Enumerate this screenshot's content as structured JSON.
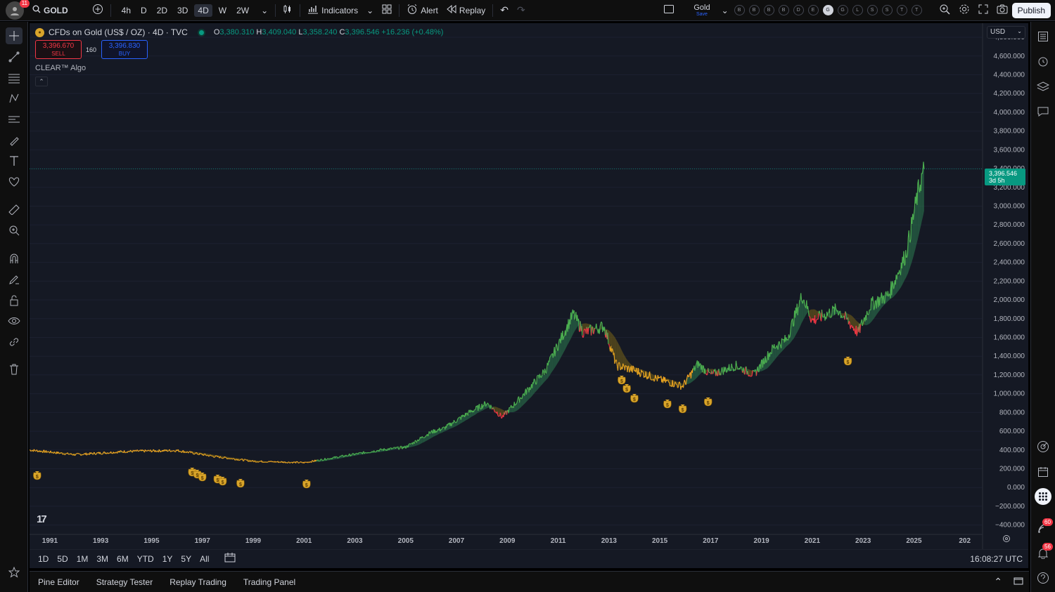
{
  "topbar": {
    "avatar_badge": "11",
    "symbol": "GOLD",
    "timeframes": [
      "4h",
      "D",
      "2D",
      "3D",
      "4D",
      "W",
      "2W"
    ],
    "active_timeframe": "4D",
    "indicators_label": "Indicators",
    "alert_label": "Alert",
    "replay_label": "Replay",
    "layout_name": "Gold",
    "layout_status": "Save",
    "watchlist_letters": [
      "B",
      "B",
      "B",
      "B",
      "D",
      "E",
      "G",
      "G",
      "L",
      "S",
      "S",
      "T",
      "T"
    ],
    "watchlist_active_index": 6,
    "publish_label": "Publish"
  },
  "legend": {
    "title": "CFDs on Gold (US$ / OZ) · 4D · TVC",
    "open_label": "O",
    "open": "3,380.310",
    "high_label": "H",
    "high": "3,409.040",
    "low_label": "L",
    "low": "3,358.240",
    "close_label": "C",
    "close": "3,396.546",
    "change": "+16.236 (+0.48%)"
  },
  "trade": {
    "sell_price": "3,396.670",
    "sell_label": "SELL",
    "spread": "160",
    "buy_price": "3,396.830",
    "buy_label": "BUY"
  },
  "indicator_name": "CLEAR™ Algo",
  "currency": "USD",
  "last_price": "3,396.546",
  "last_price_countdown": "3d 5h",
  "chart_data": {
    "type": "line",
    "x_tick_labels": [
      "1991",
      "1993",
      "1995",
      "1997",
      "1999",
      "2001",
      "2003",
      "2005",
      "2007",
      "2009",
      "2011",
      "2013",
      "2015",
      "2017",
      "2019",
      "2021",
      "2023",
      "2025",
      "202"
    ],
    "y_tick_labels": [
      "4,800.000",
      "4,600.000",
      "4,400.000",
      "4,200.000",
      "4,000.000",
      "3,800.000",
      "3,600.000",
      "3,400.000",
      "3,200.000",
      "3,000.000",
      "2,800.000",
      "2,600.000",
      "2,400.000",
      "2,200.000",
      "2,000.000",
      "1,800.000",
      "1,600.000",
      "1,400.000",
      "1,200.000",
      "1,000.000",
      "800.000",
      "600.000",
      "400.000",
      "200.000",
      "0.000",
      "−200.000",
      "−400.000"
    ],
    "ylim": [
      -500,
      4950
    ],
    "xlim": [
      1990.2,
      2027.7
    ],
    "series": [
      {
        "x": [
          1990.2,
          1992.0,
          1994.0,
          1996.0,
          1997.5,
          1999.0,
          2001.0,
          2002.0,
          2003.0,
          2004.0,
          2005.0,
          2006.0,
          2006.5,
          2007.5,
          2008.2,
          2008.8,
          2009.5,
          2010.5,
          2011.6,
          2012.0,
          2012.8,
          2013.3,
          2014.0,
          2015.0,
          2015.9,
          2016.5,
          2017.0,
          2018.0,
          2018.7,
          2019.5,
          2020.0,
          2020.6,
          2021.0,
          2022.0,
          2022.8,
          2023.3,
          2024.0,
          2024.7,
          2025.2,
          2025.4
        ],
        "y": [
          400,
          350,
          385,
          395,
          330,
          280,
          265,
          310,
          355,
          400,
          430,
          590,
          630,
          800,
          900,
          750,
          950,
          1250,
          1850,
          1650,
          1720,
          1300,
          1250,
          1150,
          1080,
          1320,
          1200,
          1300,
          1200,
          1500,
          1580,
          2050,
          1780,
          1900,
          1650,
          1950,
          2050,
          2500,
          3200,
          3397
        ]
      }
    ],
    "signal_markers": [
      1990.5,
      1996.6,
      1996.8,
      1997.0,
      1997.6,
      1997.8,
      1998.5,
      2001.1,
      2013.5,
      2013.7,
      2014.0,
      2015.3,
      2015.9,
      2016.9,
      2022.4
    ]
  },
  "range_bar": {
    "ranges": [
      "1D",
      "5D",
      "1M",
      "3M",
      "6M",
      "YTD",
      "1Y",
      "5Y",
      "All"
    ],
    "time": "16:08:27 UTC"
  },
  "bottom_tabs": [
    "Pine Editor",
    "Strategy Tester",
    "Replay Trading",
    "Trading Panel"
  ],
  "right_badges": {
    "ideas": "60",
    "notifications": "56"
  },
  "colors": {
    "bull": "#4caf50",
    "bear": "#f23645",
    "neutral": "#f5a623",
    "band_bull": "#2e7d52",
    "accent": "#089981"
  },
  "icons": [
    "search-icon",
    "add-symbol-icon",
    "chart-type-icon",
    "indicators-icon",
    "templates-icon",
    "alert-icon",
    "replay-icon",
    "undo-icon",
    "redo-icon",
    "layout-icon",
    "quick-search-icon",
    "settings-icon",
    "fullscreen-icon",
    "snapshot-icon"
  ]
}
